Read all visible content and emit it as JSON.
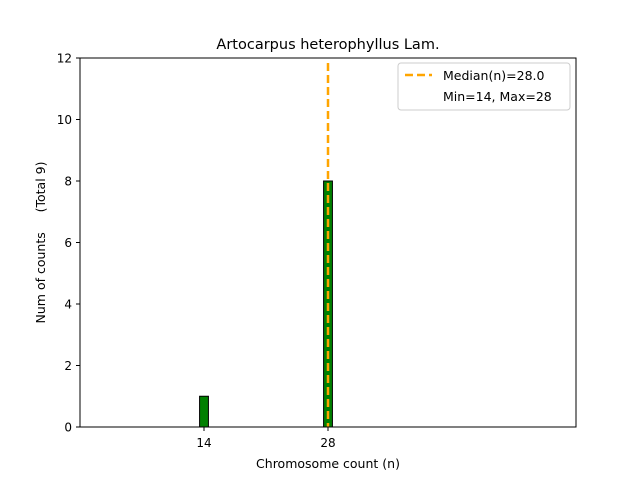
{
  "chart_data": {
    "type": "bar",
    "title": "Artocarpus heterophyllus Lam.",
    "xlabel": "Chromosome count (n)",
    "ylabel": "Num of counts     (Total 9)",
    "xticks": [
      14,
      28
    ],
    "yticks": [
      0,
      2,
      4,
      6,
      8,
      10,
      12
    ],
    "xlim": [
      0,
      56
    ],
    "ylim": [
      0,
      12
    ],
    "bars": [
      {
        "x": 14,
        "count": 1
      },
      {
        "x": 28,
        "count": 8
      }
    ],
    "median": 28.0,
    "bar_color": "#008000",
    "median_color": "#ffa500",
    "legend": {
      "placement": "top-right",
      "entries": [
        "Median(n)=28.0",
        "Min=14, Max=28"
      ]
    },
    "grid": false
  }
}
